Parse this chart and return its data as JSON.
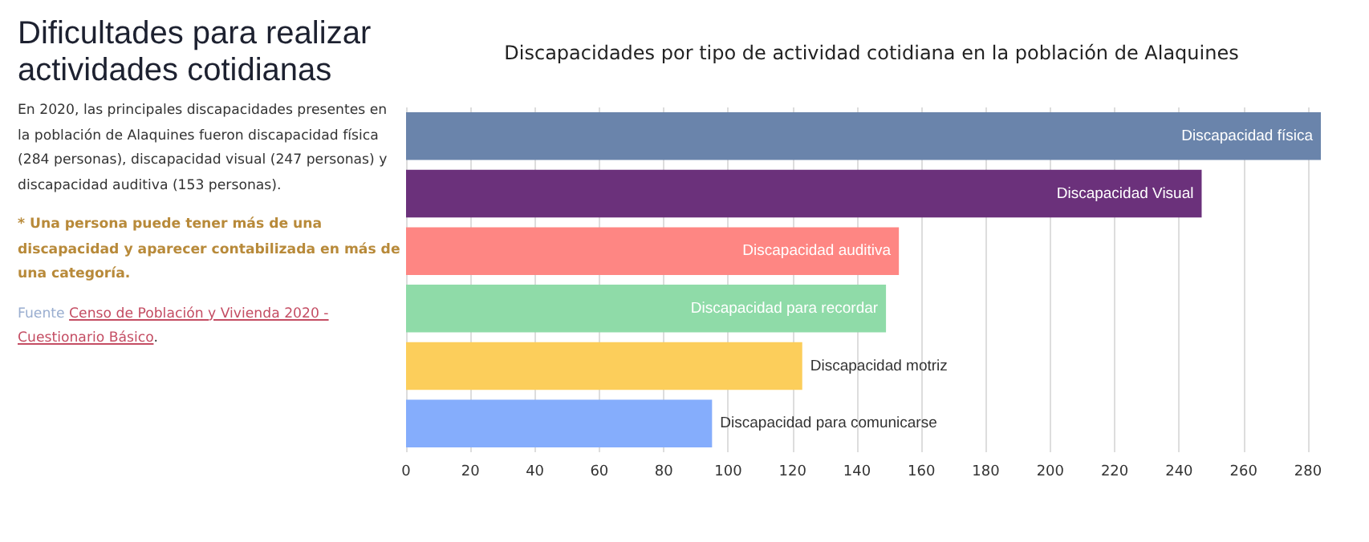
{
  "chart_data": {
    "type": "bar",
    "orientation": "horizontal",
    "title": "Dificultades para realizar actividades cotidianas",
    "subtitle": "Discapacidades por tipo de actividad cotidiana en la población de Alaquines",
    "annotations": [
      "En 2020, las principales discapacidades presentes en la población de Alaquines fueron discapacidad física (284 personas), discapacidad visual (247 personas) y discapacidad auditiva (153 personas).",
      "* Una persona puede tener más de una discapacidad y aparecer contabilizada en más de una categoría.",
      "Fuente Censo de Población y Vivienda 2020 - Cuestionario Básico."
    ],
    "categories": [
      "Discapacidad física",
      "Discapacidad Visual",
      "Discapacidad auditiva",
      "Discapacidad para recordar",
      "Discapacidad motriz",
      "Discapacidad para comunicarse"
    ],
    "values": [
      284,
      247,
      153,
      149,
      123,
      95
    ],
    "colors": [
      "#6a84ab",
      "#6b317b",
      "#fe8683",
      "#8fdba8",
      "#fcce5b",
      "#85adfc"
    ],
    "xlim": [
      0,
      284
    ],
    "xticks": [
      0,
      20,
      40,
      60,
      80,
      100,
      120,
      140,
      160,
      180,
      200,
      220,
      240,
      260,
      280
    ],
    "grid": "x",
    "tick_labels": "x"
  }
}
